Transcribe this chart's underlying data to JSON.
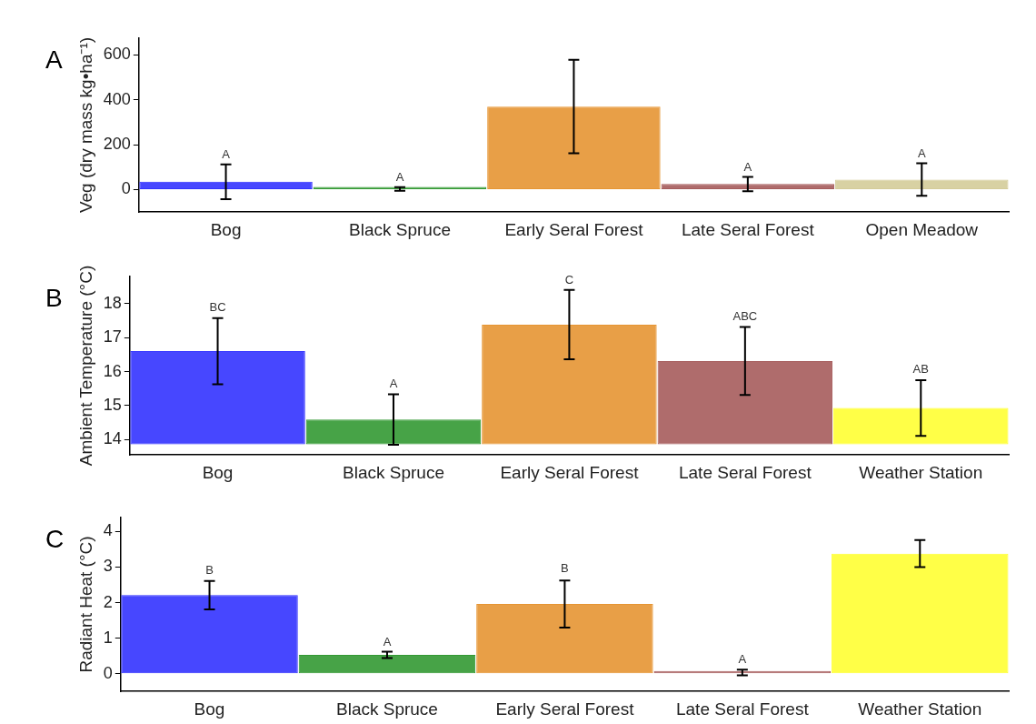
{
  "chart_data": [
    {
      "type": "bar",
      "title": "A",
      "ylabel": "Veg (dry mass kg•ha⁻¹)",
      "categories": [
        "Bog",
        "Black Spruce",
        "Early Seral Forest",
        "Late Seral Forest",
        "Open Meadow"
      ],
      "values": [
        35,
        3,
        370,
        25,
        45
      ],
      "errors": [
        77,
        8,
        208,
        32,
        72
      ],
      "colors": [
        "#3333ff",
        "#339933",
        "#e69533",
        "#a65c5c",
        "#d4cc99"
      ],
      "ylim": [
        -100,
        675
      ],
      "yticks": [
        0,
        200,
        400,
        600
      ],
      "grid": false,
      "annotations": [
        {
          "text": "A",
          "x": "Bog",
          "y": 112
        },
        {
          "text": "A",
          "x": "Black Spruce",
          "y": 11
        },
        {
          "text": "A",
          "x": "Late Seral Forest",
          "y": 57
        },
        {
          "text": "A",
          "x": "Open Meadow",
          "y": 117
        }
      ]
    },
    {
      "type": "bar",
      "title": "B",
      "ylabel": "Ambient Temperature (°C)",
      "categories": [
        "Bog",
        "Black Spruce",
        "Early Seral Forest",
        "Late Seral Forest",
        "Weather Station"
      ],
      "base": [
        13.86,
        13.86,
        13.86,
        13.86,
        13.86
      ],
      "values": [
        2.74,
        0.73,
        3.52,
        2.45,
        1.07
      ],
      "errors": [
        0.97,
        0.74,
        1.02,
        1.0,
        0.82
      ],
      "colors": [
        "#3333ff",
        "#339933",
        "#e69533",
        "#a65c5c",
        "#ffff33"
      ],
      "ylim": [
        13.55,
        18.8
      ],
      "yticks": [
        14,
        15,
        16,
        17,
        18
      ],
      "grid": false,
      "annotations": [
        {
          "text": "BC",
          "x": "Bog",
          "y": 17.6
        },
        {
          "text": "A",
          "x": "Black Spruce",
          "y": 15.35
        },
        {
          "text": "C",
          "x": "Early Seral Forest",
          "y": 18.4
        },
        {
          "text": "ABC",
          "x": "Late Seral Forest",
          "y": 17.33
        },
        {
          "text": "AB",
          "x": "Weather Station",
          "y": 15.78
        }
      ]
    },
    {
      "type": "bar",
      "title": "C",
      "ylabel": "Radiant Heat (°C)",
      "categories": [
        "Bog",
        "Black Spruce",
        "Early Seral Forest",
        "Late Seral Forest",
        "Weather Station"
      ],
      "values": [
        2.21,
        0.53,
        1.96,
        0.03,
        3.38
      ],
      "errors": [
        0.4,
        0.09,
        0.66,
        0.08,
        0.38
      ],
      "colors": [
        "#3333ff",
        "#339933",
        "#e69533",
        "#a65c5c",
        "#ffff33"
      ],
      "ylim": [
        -0.5,
        4.4
      ],
      "yticks": [
        0,
        1,
        2,
        3,
        4
      ],
      "grid": false,
      "annotations": [
        {
          "text": "B",
          "x": "Bog",
          "y": 2.62
        },
        {
          "text": "A",
          "x": "Black Spruce",
          "y": 0.62
        },
        {
          "text": "B",
          "x": "Early Seral Forest",
          "y": 2.67
        },
        {
          "text": "A",
          "x": "Late Seral Forest",
          "y": 0.11
        }
      ]
    }
  ]
}
